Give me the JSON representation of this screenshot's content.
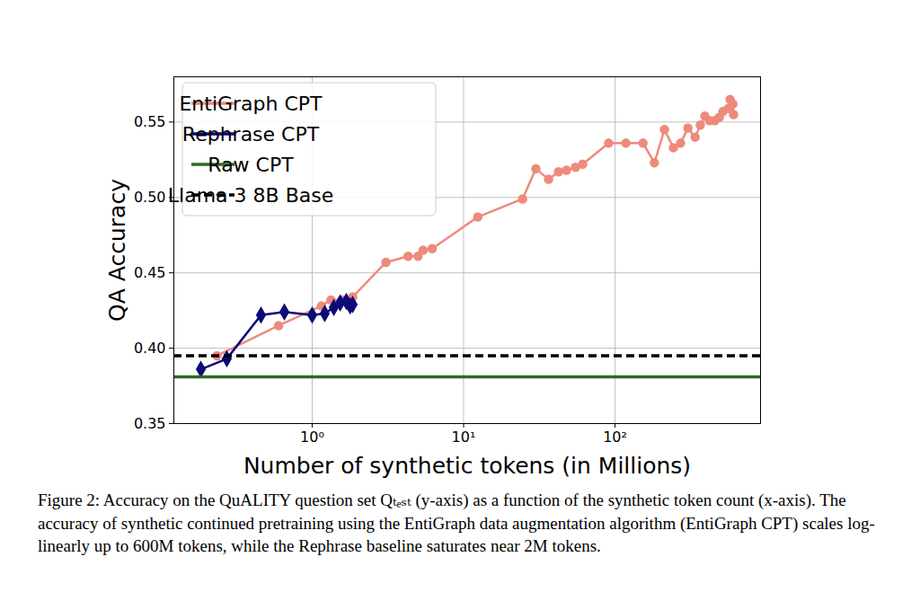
{
  "chart_data": {
    "type": "line",
    "x_label": "Number of synthetic tokens (in Millions)",
    "y_label": "QA Accuracy",
    "caption": "Figure 2:   Accuracy on the QuALITY question set Qₜₑₛₜ (y-axis) as a function of the synthetic token count (x-axis). The accuracy of synthetic continued pretraining using the EntiGraph data augmentation algorithm (EntiGraph CPT) scales log-linearly up to 600M tokens, while the Rephrase baseline saturates near 2M tokens.",
    "log": "x",
    "grid": true,
    "legend": "upper left",
    "xlim": [
      0.122,
      914
    ],
    "xticks": [
      {
        "value": 1,
        "label": "10⁰"
      },
      {
        "value": 10,
        "label": "10¹"
      },
      {
        "value": 100,
        "label": "10²"
      }
    ],
    "ylim": [
      0.35,
      0.58
    ],
    "yticks": [
      0.35,
      {
        "value": 0.4,
        "label": "0.40"
      },
      0.45,
      {
        "value": 0.5,
        "label": "0.50"
      },
      0.55
    ],
    "series": [
      {
        "name": "EntiGraph CPT",
        "color": "#ee8a7c",
        "marker": "circle",
        "line_style": "solid",
        "x": [
          0.235,
          0.6,
          1.15,
          1.33,
          1.57,
          1.85,
          3.07,
          4.3,
          5.0,
          5.4,
          6.2,
          12.4,
          24.5,
          30,
          36.4,
          42.3,
          47.8,
          54.8,
          61.1,
          90.8,
          118,
          153,
          182,
          212,
          243,
          271,
          303,
          338,
          366,
          392,
          420,
          456,
          488,
          516,
          560,
          575,
          600,
          607
        ],
        "values": [
          0.395,
          0.415,
          0.428,
          0.432,
          0.432,
          0.434,
          0.457,
          0.461,
          0.461,
          0.465,
          0.466,
          0.487,
          0.499,
          0.519,
          0.512,
          0.517,
          0.518,
          0.52,
          0.522,
          0.536,
          0.536,
          0.536,
          0.523,
          0.545,
          0.533,
          0.536,
          0.546,
          0.54,
          0.548,
          0.554,
          0.551,
          0.551,
          0.553,
          0.557,
          0.559,
          0.565,
          0.562,
          0.555
        ]
      },
      {
        "name": "Rephrase CPT",
        "color": "#0c0c78",
        "marker": "diamond",
        "line_style": "solid",
        "x": [
          0.184,
          0.273,
          0.459,
          0.655,
          1.0,
          1.21,
          1.39,
          1.53,
          1.68,
          1.78,
          1.85
        ],
        "values": [
          0.386,
          0.393,
          0.422,
          0.424,
          0.422,
          0.423,
          0.427,
          0.43,
          0.431,
          0.428,
          0.429
        ]
      },
      {
        "name": "Raw CPT",
        "color": "#2e6a1e",
        "type": "hline",
        "line_style": "solid",
        "values": [
          0.381
        ]
      },
      {
        "name": "Llama 3 8B Base",
        "color": "#000000",
        "type": "hline",
        "line_style": "dashed",
        "values": [
          0.395
        ]
      }
    ]
  }
}
